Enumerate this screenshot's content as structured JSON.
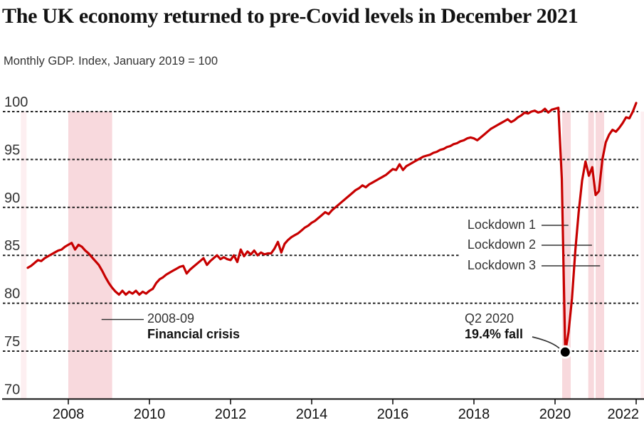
{
  "title": "The UK economy returned to pre-Covid levels in December 2021",
  "subtitle": "Monthly GDP. Index, January 2019 = 100",
  "colors": {
    "line": "#c70000",
    "band": "#f8d9dd",
    "band_faint": "#fdeff1",
    "grid": "#222222",
    "axis": "#121212",
    "text_dark": "#121212",
    "text_medium": "#333333",
    "marker_fill": "#000000",
    "marker_ring": "#ffffff",
    "leader": "#333333"
  },
  "chart_data": {
    "type": "line",
    "title": "The UK economy returned to pre-Covid levels in December 2021",
    "subtitle": "Monthly GDP. Index, January 2019 = 100",
    "x_axis": {
      "ticks": [
        2008,
        2010,
        2012,
        2014,
        2016,
        2018,
        2020,
        2022
      ],
      "range": [
        2006.9,
        2022.3
      ]
    },
    "y_axis": {
      "ticks": [
        70,
        75,
        80,
        85,
        90,
        95,
        100
      ],
      "range": [
        70,
        101.6
      ],
      "gridlines": "dotted"
    },
    "series": [
      {
        "name": "Monthly GDP index, January 2019 = 100",
        "start_year": 2007,
        "start_month": 1,
        "frequency": "monthly",
        "color": "#c70000",
        "values": [
          83.7,
          83.9,
          84.2,
          84.5,
          84.4,
          84.7,
          84.9,
          85.1,
          85.3,
          85.5,
          85.6,
          85.9,
          86.1,
          86.3,
          85.6,
          86.1,
          85.9,
          85.5,
          85.2,
          84.8,
          84.4,
          84.0,
          83.4,
          82.7,
          82.1,
          81.6,
          81.2,
          80.9,
          81.3,
          80.9,
          81.2,
          81.0,
          81.3,
          80.9,
          81.2,
          81.0,
          81.3,
          81.5,
          82.1,
          82.5,
          82.7,
          83.0,
          83.2,
          83.4,
          83.6,
          83.8,
          83.9,
          83.1,
          83.5,
          83.8,
          84.1,
          84.4,
          84.7,
          84.0,
          84.4,
          84.7,
          85.0,
          84.6,
          84.8,
          84.6,
          84.5,
          85.0,
          84.3,
          85.6,
          84.9,
          85.4,
          85.1,
          85.5,
          85.0,
          85.3,
          85.1,
          85.2,
          85.2,
          85.7,
          86.4,
          85.3,
          86.2,
          86.6,
          86.9,
          87.1,
          87.3,
          87.6,
          87.9,
          88.1,
          88.4,
          88.6,
          88.9,
          89.2,
          89.5,
          89.3,
          89.7,
          90.0,
          90.3,
          90.6,
          90.9,
          91.2,
          91.5,
          91.8,
          92.0,
          92.3,
          92.1,
          92.4,
          92.6,
          92.8,
          93.0,
          93.2,
          93.4,
          93.7,
          94.0,
          93.9,
          94.5,
          93.9,
          94.3,
          94.5,
          94.7,
          94.9,
          95.1,
          95.3,
          95.4,
          95.5,
          95.7,
          95.8,
          96.0,
          96.1,
          96.3,
          96.4,
          96.6,
          96.7,
          96.9,
          97.0,
          97.2,
          97.3,
          97.2,
          97.0,
          97.3,
          97.6,
          97.9,
          98.2,
          98.4,
          98.6,
          98.8,
          99.0,
          99.2,
          98.9,
          99.1,
          99.4,
          99.6,
          99.9,
          99.8,
          100.0,
          100.1,
          99.9,
          100.0,
          100.3,
          99.9,
          100.2,
          100.3,
          100.4,
          93.0,
          74.9,
          77.0,
          80.5,
          85.5,
          89.5,
          92.8,
          94.8,
          93.3,
          94.2,
          91.3,
          91.7,
          95.0,
          96.8,
          97.6,
          98.1,
          97.9,
          98.3,
          98.8,
          99.4,
          99.3,
          100.0,
          100.9
        ]
      }
    ],
    "bands": [
      {
        "label": "2008-09 Financial crisis",
        "from": 2008.0,
        "to": 2009.08,
        "faint": false
      },
      {
        "label": "Lockdown 1",
        "from": 2020.175,
        "to": 2020.385,
        "faint": false
      },
      {
        "label": "Lockdown 2",
        "from": 2020.82,
        "to": 2020.96,
        "faint": false
      },
      {
        "label": "Lockdown 3",
        "from": 2021.0,
        "to": 2021.21,
        "faint": false
      },
      {
        "label": "",
        "from": 2006.83,
        "to": 2006.97,
        "faint": true
      },
      {
        "label": "",
        "from": 2022.11,
        "to": 2022.3,
        "faint": true
      }
    ],
    "annotations": {
      "financial_crisis": {
        "line1": "2008-09",
        "line2": "Financial crisis",
        "target_year": 2008.82
      },
      "q2_2020": {
        "line1": "Q2 2020",
        "line2": "19.4% fall"
      },
      "lockdown1": {
        "label": "Lockdown 1",
        "target_year": 2020.33
      },
      "lockdown2": {
        "label": "Lockdown 2",
        "target_year": 2020.91
      },
      "lockdown3": {
        "label": "Lockdown 3",
        "target_year": 2021.11
      }
    },
    "marker": {
      "year": 2020.25,
      "value": 74.9
    }
  }
}
